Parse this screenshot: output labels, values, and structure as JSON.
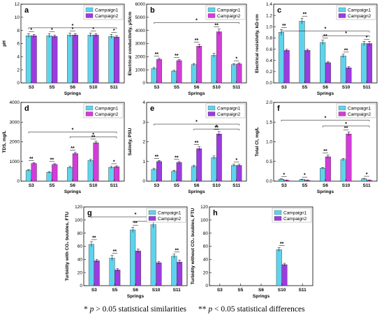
{
  "colors": {
    "campaign1": "#5fd3ec",
    "campaign2": "#9b3be0",
    "campaign2_alt": "#d23cd8"
  },
  "footnote": {
    "single_star": "*",
    "single_p": "p",
    "single_text": " > 0.05 statistical similarities",
    "double_star": "**",
    "double_p": "p",
    "double_text": " < 0.05 statistical differences"
  },
  "chart_data": [
    {
      "panel": "a",
      "type": "bar",
      "categories": [
        "S3",
        "S5",
        "S6",
        "S10",
        "S11"
      ],
      "xlabel": "Springs",
      "ylabel": "pH",
      "ylim": [
        0,
        12
      ],
      "yticks": [
        0,
        2,
        4,
        6,
        8,
        10,
        12
      ],
      "legend": [
        "Campaign1",
        "Campaign2"
      ],
      "legend_position": "top-right",
      "series": [
        {
          "name": "Campaign1",
          "values": [
            7.2,
            7.2,
            7.3,
            7.3,
            7.1
          ],
          "errors": [
            0.3,
            0.3,
            0.3,
            0.3,
            0.3
          ]
        },
        {
          "name": "Campaign2",
          "values": [
            7.2,
            7.1,
            7.3,
            7.3,
            7.0
          ],
          "errors": [
            0.2,
            0.2,
            0.2,
            0.2,
            0.2
          ]
        }
      ],
      "pair_marks": [
        "*",
        "*",
        "*",
        "*",
        "*"
      ],
      "brackets": [
        {
          "from": 0,
          "to": 4,
          "mark": "*",
          "y": 8.4
        }
      ]
    },
    {
      "panel": "b",
      "type": "bar",
      "categories": [
        "S3",
        "S5",
        "S6",
        "S10",
        "S11"
      ],
      "xlabel": "Springs",
      "ylabel": "Electrical conductivity, μS/cm",
      "ylim": [
        0,
        6000
      ],
      "yticks": [
        0,
        1000,
        2000,
        3000,
        4000,
        5000,
        6000
      ],
      "legend": [
        "Campaign1",
        "Campaign2"
      ],
      "legend_position": "top-right",
      "series": [
        {
          "name": "Campaign1",
          "values": [
            1100,
            900,
            1400,
            2100,
            1400
          ],
          "errors": [
            80,
            60,
            80,
            150,
            80
          ]
        },
        {
          "name": "Campaign2",
          "values": [
            1800,
            1700,
            2800,
            3900,
            1450
          ],
          "errors": [
            80,
            80,
            150,
            200,
            80
          ]
        }
      ],
      "pair_marks": [
        "**",
        "**",
        "**",
        "**",
        "*"
      ],
      "brackets": [
        {
          "from": 0,
          "to": 4,
          "mark": "*",
          "y": 4600
        }
      ]
    },
    {
      "panel": "c",
      "type": "bar",
      "categories": [
        "S3",
        "S5",
        "S6",
        "S10",
        "S11"
      ],
      "xlabel": "Springs",
      "ylabel": "Electrical resistivity, kΩ·cm",
      "ylim": [
        0,
        1.4
      ],
      "yticks": [
        0.0,
        0.2,
        0.4,
        0.6,
        0.8,
        1.0,
        1.2,
        1.4
      ],
      "legend": [
        "Campaign1",
        "Campaign2"
      ],
      "legend_position": "top-right",
      "series": [
        {
          "name": "Campaign1",
          "values": [
            0.9,
            1.1,
            0.72,
            0.48,
            0.7
          ],
          "errors": [
            0.05,
            0.05,
            0.04,
            0.03,
            0.04
          ]
        },
        {
          "name": "Campaign2",
          "values": [
            0.58,
            0.58,
            0.36,
            0.27,
            0.7
          ],
          "errors": [
            0.02,
            0.02,
            0.02,
            0.02,
            0.04
          ]
        }
      ],
      "pair_marks": [
        "**",
        "**",
        "**",
        "**",
        "*"
      ],
      "brackets": [
        {
          "from": 0,
          "to": 4,
          "mark": "*",
          "y": 0.92
        },
        {
          "from": 2,
          "to": 4,
          "mark": "*",
          "y": 0.84
        }
      ]
    },
    {
      "panel": "d",
      "type": "bar",
      "categories": [
        "S3",
        "S5",
        "S6",
        "S10",
        "S11"
      ],
      "xlabel": "Springs",
      "ylabel": "TDS, mg/L",
      "ylim": [
        0,
        4000
      ],
      "yticks": [
        0,
        1000,
        2000,
        3000,
        4000
      ],
      "legend": [
        "Campaign1",
        "Campaign2"
      ],
      "legend_position": "top-right",
      "series": [
        {
          "name": "Campaign1",
          "values": [
            550,
            450,
            700,
            1050,
            700
          ],
          "errors": [
            40,
            40,
            50,
            60,
            50
          ]
        },
        {
          "name": "Campaign2",
          "values": [
            900,
            850,
            1400,
            1950,
            730
          ],
          "errors": [
            40,
            40,
            70,
            80,
            50
          ]
        }
      ],
      "pair_marks": [
        "**",
        "**",
        "**",
        "**",
        "*"
      ],
      "brackets": [
        {
          "from": 0,
          "to": 4,
          "mark": "*",
          "y": 2500
        },
        {
          "from": 2,
          "to": 4,
          "mark": "*",
          "y": 2250
        }
      ]
    },
    {
      "panel": "e",
      "type": "bar",
      "categories": [
        "S3",
        "S5",
        "S6",
        "S10",
        "S11"
      ],
      "xlabel": "Springs",
      "ylabel": "Salinity, PSU",
      "ylim": [
        0,
        4
      ],
      "yticks": [
        0,
        1,
        2,
        3,
        4
      ],
      "legend": [
        "Campaign1",
        "Campaign2"
      ],
      "legend_position": "top-right",
      "series": [
        {
          "name": "Campaign1",
          "values": [
            0.6,
            0.5,
            0.75,
            1.2,
            0.8
          ],
          "errors": [
            0.05,
            0.05,
            0.06,
            0.08,
            0.06
          ]
        },
        {
          "name": "Campaign2",
          "values": [
            1.0,
            0.95,
            1.65,
            2.4,
            0.8
          ],
          "errors": [
            0.05,
            0.05,
            0.1,
            0.12,
            0.06
          ]
        }
      ],
      "pair_marks": [
        "**",
        "**",
        "**",
        "**",
        "*"
      ],
      "brackets": [
        {
          "from": 0,
          "to": 4,
          "mark": "*",
          "y": 2.9
        },
        {
          "from": 2,
          "to": 4,
          "mark": "*",
          "y": 2.65
        }
      ]
    },
    {
      "panel": "f",
      "type": "bar",
      "categories": [
        "S3",
        "S5",
        "S6",
        "S10",
        "S11"
      ],
      "xlabel": "Springs",
      "ylabel": "Total Cl, mg/L",
      "ylim": [
        0,
        2.0
      ],
      "yticks": [
        0.0,
        0.5,
        1.0,
        1.5,
        2.0
      ],
      "legend": [
        "Campaign1",
        "Campaign2"
      ],
      "legend_position": "top-right",
      "series": [
        {
          "name": "Campaign1",
          "values": [
            0.05,
            0.04,
            0.33,
            0.55,
            0.06
          ],
          "errors": [
            0.01,
            0.01,
            0.02,
            0.03,
            0.01
          ]
        },
        {
          "name": "Campaign2",
          "values": [
            0.02,
            0.02,
            0.62,
            1.2,
            0.02
          ],
          "errors": [
            0.01,
            0.01,
            0.04,
            0.05,
            0.01
          ]
        }
      ],
      "pair_marks": [
        "*",
        "*",
        "**",
        "**",
        "*"
      ],
      "brackets": [
        {
          "from": 0,
          "to": 4,
          "mark": "*",
          "y": 1.55
        },
        {
          "from": 2,
          "to": 4,
          "mark": "*",
          "y": 1.4
        }
      ]
    },
    {
      "panel": "g",
      "type": "bar",
      "categories": [
        "S3",
        "S5",
        "S6",
        "S10",
        "S11"
      ],
      "xlabel": "Springs",
      "ylabel": "Turbidity with CO₂ buubles, FTU",
      "ylim": [
        0,
        120
      ],
      "yticks": [
        0,
        20,
        40,
        60,
        80,
        100,
        120
      ],
      "legend": [
        "Campaign1",
        "Campaign2"
      ],
      "legend_position": "top-right",
      "series": [
        {
          "name": "Campaign1",
          "values": [
            63,
            42,
            85,
            93,
            45
          ],
          "errors": [
            4,
            4,
            4,
            5,
            3
          ]
        },
        {
          "name": "Campaign2",
          "values": [
            38,
            24,
            53,
            35,
            36
          ],
          "errors": [
            2,
            2,
            3,
            2,
            3
          ]
        }
      ],
      "pair_marks": [
        "**",
        "**",
        "**",
        "**",
        "**"
      ],
      "brackets": [
        {
          "from": 0,
          "to": 4,
          "mark": "*",
          "y": 105
        },
        {
          "from": 2,
          "to": 4,
          "mark": "*",
          "y": 98
        }
      ]
    },
    {
      "panel": "h",
      "type": "bar",
      "categories": [
        "S3",
        "S5",
        "S6",
        "S10",
        "S11"
      ],
      "xlabel": "Springs",
      "ylabel": "Turbidity without CO₂ buubles, FTU",
      "ylim": [
        0,
        120
      ],
      "yticks": [
        0,
        20,
        40,
        60,
        80,
        100,
        120
      ],
      "legend": [
        "Campaign1",
        "Campaign2"
      ],
      "legend_position": "top-right",
      "series": [
        {
          "name": "Campaign1",
          "values": [
            0,
            0,
            0,
            55,
            0
          ],
          "errors": [
            0,
            0,
            0,
            3,
            0
          ]
        },
        {
          "name": "Campaign2",
          "values": [
            0,
            0,
            0,
            32,
            0
          ],
          "errors": [
            0,
            0,
            0,
            2,
            0
          ]
        }
      ],
      "pair_marks": [
        "",
        "",
        "",
        "**",
        ""
      ],
      "brackets": []
    }
  ]
}
